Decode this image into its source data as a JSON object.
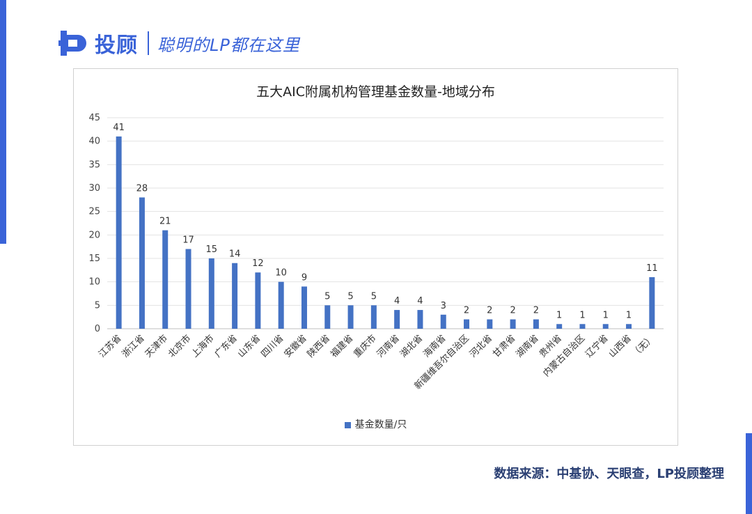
{
  "brand": {
    "name": "投顾",
    "slogan": "聪明的LP都在这里"
  },
  "source_note": "数据来源：中基协、天眼查，LP投顾整理",
  "colors": {
    "accent": "#3a63d8",
    "bar": "#4472c4",
    "source_text": "#2a3f73"
  },
  "chart_data": {
    "type": "bar",
    "title": "五大AIC附属机构管理基金数量-地域分布",
    "categories": [
      "江苏省",
      "浙江省",
      "天津市",
      "北京市",
      "上海市",
      "广东省",
      "山东省",
      "四川省",
      "安徽省",
      "陕西省",
      "福建省",
      "重庆市",
      "河南省",
      "湖北省",
      "海南省",
      "新疆维吾尔自治区",
      "河北省",
      "甘肃省",
      "湖南省",
      "贵州省",
      "内蒙古自治区",
      "辽宁省",
      "山西省",
      "（无）"
    ],
    "series": [
      {
        "name": "基金数量/只",
        "values": [
          41,
          28,
          21,
          17,
          15,
          14,
          12,
          10,
          9,
          5,
          5,
          5,
          4,
          4,
          3,
          2,
          2,
          2,
          2,
          1,
          1,
          1,
          1,
          11
        ]
      }
    ],
    "ylim": [
      0,
      45
    ],
    "yticks": [
      0,
      5,
      10,
      15,
      20,
      25,
      30,
      35,
      40,
      45
    ],
    "grid": true,
    "legend_position": "bottom"
  }
}
